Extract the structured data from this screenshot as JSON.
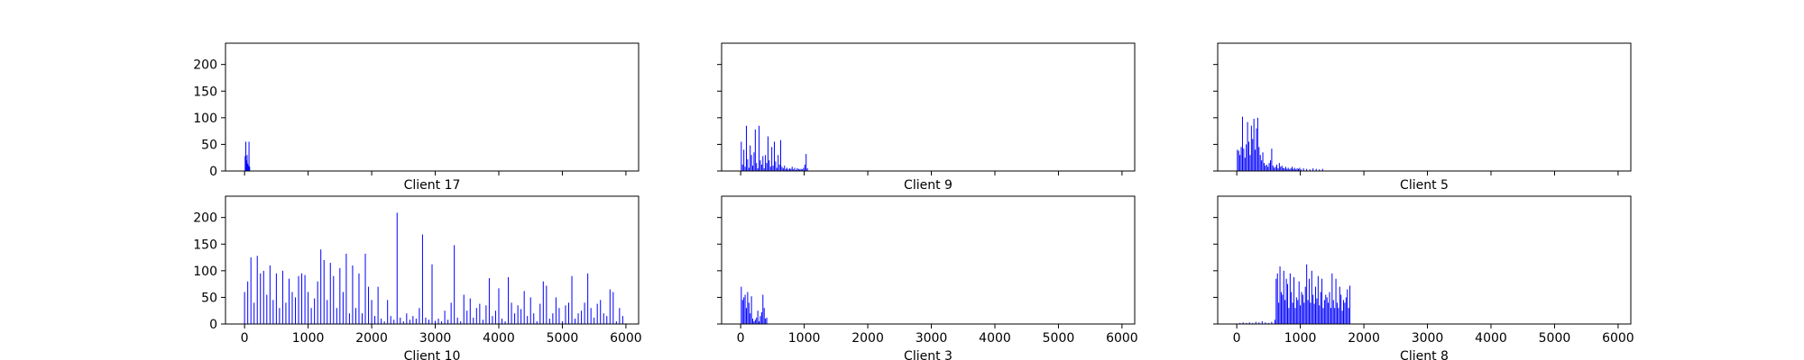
{
  "figure": {
    "background": "#ffffff",
    "bar_color": "#0000ff",
    "axes_color": "#000000"
  },
  "chart_data": [
    {
      "type": "bar",
      "title": "Client 17",
      "xlim": [
        -300,
        6200
      ],
      "ylim": [
        0,
        240
      ],
      "xticks": [
        0,
        1000,
        2000,
        3000,
        4000,
        5000,
        6000
      ],
      "yticks": [
        0,
        50,
        100,
        150,
        200
      ],
      "show_xtick_labels": false,
      "show_ytick_labels": true,
      "x": [
        10,
        20,
        30,
        40,
        50,
        60,
        70,
        80,
        90
      ],
      "values": [
        28,
        55,
        20,
        30,
        14,
        10,
        55,
        8,
        0
      ]
    },
    {
      "type": "bar",
      "title": "Client 9",
      "xlim": [
        -300,
        6200
      ],
      "ylim": [
        0,
        240
      ],
      "xticks": [
        0,
        1000,
        2000,
        3000,
        4000,
        5000,
        6000
      ],
      "yticks": [
        0,
        50,
        100,
        150,
        200
      ],
      "show_xtick_labels": false,
      "show_ytick_labels": false,
      "x": [
        10,
        30,
        50,
        70,
        90,
        110,
        130,
        150,
        170,
        190,
        210,
        230,
        250,
        270,
        290,
        310,
        330,
        350,
        370,
        390,
        410,
        430,
        450,
        470,
        490,
        510,
        530,
        550,
        570,
        590,
        610,
        630,
        650,
        670,
        690,
        710,
        730,
        750,
        770,
        790,
        810,
        830,
        850,
        870,
        890,
        910,
        930,
        950,
        970,
        990,
        1010,
        1030,
        1050
      ],
      "values": [
        55,
        12,
        40,
        8,
        85,
        22,
        6,
        48,
        30,
        10,
        35,
        78,
        15,
        5,
        85,
        20,
        12,
        28,
        5,
        30,
        15,
        65,
        20,
        8,
        45,
        10,
        55,
        18,
        6,
        30,
        12,
        58,
        8,
        5,
        10,
        4,
        6,
        3,
        5,
        4,
        8,
        3,
        6,
        2,
        5,
        4,
        3,
        4,
        3,
        6,
        12,
        32,
        5
      ]
    },
    {
      "type": "bar",
      "title": "Client 5",
      "xlim": [
        -300,
        6200
      ],
      "ylim": [
        0,
        240
      ],
      "xticks": [
        0,
        1000,
        2000,
        3000,
        4000,
        5000,
        6000
      ],
      "yticks": [
        0,
        50,
        100,
        150,
        200
      ],
      "show_xtick_labels": false,
      "show_ytick_labels": false,
      "x": [
        10,
        30,
        50,
        70,
        90,
        110,
        130,
        150,
        170,
        190,
        210,
        230,
        250,
        270,
        290,
        310,
        330,
        350,
        370,
        390,
        410,
        430,
        450,
        470,
        490,
        510,
        530,
        550,
        570,
        590,
        610,
        630,
        650,
        670,
        690,
        710,
        730,
        750,
        770,
        790,
        810,
        830,
        850,
        870,
        890,
        910,
        930,
        950,
        970,
        990,
        1010,
        1050,
        1100,
        1150,
        1200,
        1250,
        1300,
        1350
      ],
      "values": [
        40,
        38,
        30,
        45,
        102,
        42,
        25,
        50,
        92,
        55,
        30,
        85,
        60,
        98,
        40,
        80,
        100,
        45,
        30,
        20,
        35,
        15,
        10,
        12,
        8,
        15,
        20,
        42,
        10,
        6,
        8,
        12,
        5,
        15,
        8,
        10,
        6,
        5,
        8,
        4,
        6,
        3,
        5,
        8,
        4,
        6,
        3,
        5,
        4,
        6,
        3,
        5,
        4,
        3,
        5,
        4,
        3,
        4
      ]
    },
    {
      "type": "bar",
      "title": "Client 10",
      "xlim": [
        -300,
        6200
      ],
      "ylim": [
        0,
        240
      ],
      "xticks": [
        0,
        1000,
        2000,
        3000,
        4000,
        5000,
        6000
      ],
      "yticks": [
        0,
        50,
        100,
        150,
        200
      ],
      "show_xtick_labels": true,
      "show_ytick_labels": true,
      "x": [
        0,
        50,
        100,
        150,
        200,
        250,
        300,
        350,
        400,
        450,
        500,
        550,
        600,
        650,
        700,
        750,
        800,
        850,
        900,
        950,
        1000,
        1050,
        1100,
        1150,
        1200,
        1250,
        1300,
        1350,
        1400,
        1450,
        1500,
        1550,
        1600,
        1650,
        1700,
        1750,
        1800,
        1850,
        1900,
        1950,
        2000,
        2050,
        2100,
        2150,
        2200,
        2250,
        2300,
        2350,
        2400,
        2450,
        2500,
        2550,
        2600,
        2650,
        2700,
        2750,
        2800,
        2850,
        2900,
        2950,
        3000,
        3050,
        3100,
        3150,
        3200,
        3250,
        3300,
        3350,
        3400,
        3450,
        3500,
        3550,
        3600,
        3650,
        3700,
        3750,
        3800,
        3850,
        3900,
        3950,
        4000,
        4050,
        4100,
        4150,
        4200,
        4250,
        4300,
        4350,
        4400,
        4450,
        4500,
        4550,
        4600,
        4650,
        4700,
        4750,
        4800,
        4850,
        4900,
        4950,
        5000,
        5050,
        5100,
        5150,
        5200,
        5250,
        5300,
        5350,
        5400,
        5450,
        5500,
        5550,
        5600,
        5650,
        5700,
        5750,
        5800,
        5850,
        5900,
        5950
      ],
      "values": [
        60,
        80,
        125,
        40,
        128,
        95,
        100,
        55,
        110,
        45,
        95,
        30,
        100,
        40,
        85,
        60,
        50,
        90,
        95,
        92,
        60,
        30,
        48,
        80,
        140,
        120,
        45,
        115,
        90,
        30,
        105,
        60,
        132,
        20,
        110,
        30,
        95,
        20,
        132,
        70,
        45,
        15,
        70,
        10,
        5,
        45,
        15,
        8,
        209,
        12,
        5,
        20,
        8,
        15,
        10,
        30,
        168,
        12,
        8,
        112,
        6,
        10,
        5,
        25,
        8,
        40,
        148,
        12,
        5,
        55,
        25,
        48,
        12,
        30,
        38,
        8,
        35,
        86,
        15,
        25,
        67,
        10,
        5,
        88,
        40,
        20,
        35,
        28,
        62,
        15,
        50,
        20,
        5,
        38,
        80,
        72,
        10,
        20,
        50,
        30,
        5,
        35,
        40,
        90,
        10,
        20,
        25,
        40,
        95,
        30,
        12,
        38,
        45,
        20,
        15,
        65,
        60,
        5,
        30,
        15
      ]
    },
    {
      "type": "bar",
      "title": "Client 3",
      "xlim": [
        -300,
        6200
      ],
      "ylim": [
        0,
        240
      ],
      "xticks": [
        0,
        1000,
        2000,
        3000,
        4000,
        5000,
        6000
      ],
      "yticks": [
        0,
        50,
        100,
        150,
        200
      ],
      "show_xtick_labels": true,
      "show_ytick_labels": false,
      "x": [
        10,
        30,
        50,
        70,
        90,
        110,
        130,
        150,
        170,
        190,
        210,
        230,
        250,
        270,
        290,
        310,
        330,
        350,
        370,
        390,
        410
      ],
      "values": [
        70,
        45,
        50,
        55,
        30,
        60,
        40,
        20,
        52,
        10,
        5,
        8,
        12,
        25,
        5,
        15,
        22,
        55,
        30,
        10,
        12
      ]
    },
    {
      "type": "bar",
      "title": "Client 8",
      "xlim": [
        -300,
        6200
      ],
      "ylim": [
        0,
        240
      ],
      "xticks": [
        0,
        1000,
        2000,
        3000,
        4000,
        5000,
        6000
      ],
      "yticks": [
        0,
        50,
        100,
        150,
        200
      ],
      "show_xtick_labels": true,
      "show_ytick_labels": false,
      "x": [
        50,
        100,
        150,
        200,
        250,
        300,
        350,
        400,
        450,
        500,
        550,
        600,
        620,
        640,
        660,
        680,
        700,
        720,
        740,
        760,
        780,
        800,
        820,
        840,
        860,
        880,
        900,
        920,
        940,
        960,
        980,
        1000,
        1020,
        1040,
        1060,
        1080,
        1100,
        1120,
        1140,
        1160,
        1180,
        1200,
        1220,
        1240,
        1260,
        1280,
        1300,
        1320,
        1340,
        1360,
        1380,
        1400,
        1420,
        1440,
        1460,
        1480,
        1500,
        1520,
        1540,
        1560,
        1580,
        1600,
        1620,
        1640,
        1660,
        1680,
        1700,
        1720,
        1740,
        1760,
        1780
      ],
      "values": [
        2,
        3,
        2,
        3,
        2,
        4,
        3,
        5,
        3,
        2,
        4,
        8,
        85,
        95,
        40,
        108,
        60,
        55,
        100,
        45,
        85,
        75,
        30,
        95,
        60,
        40,
        88,
        30,
        50,
        45,
        80,
        35,
        60,
        55,
        40,
        70,
        112,
        45,
        85,
        40,
        100,
        55,
        38,
        70,
        48,
        90,
        35,
        60,
        85,
        30,
        45,
        55,
        50,
        40,
        60,
        30,
        95,
        45,
        30,
        85,
        40,
        30,
        70,
        55,
        25,
        45,
        40,
        50,
        65,
        30,
        72
      ]
    }
  ]
}
